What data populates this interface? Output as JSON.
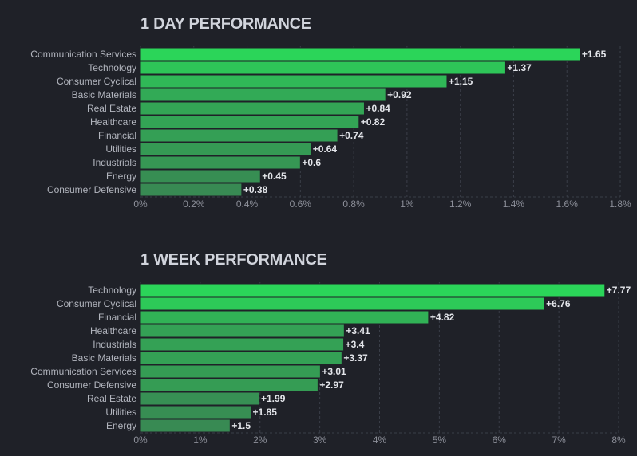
{
  "chart_data": [
    {
      "type": "bar",
      "orientation": "horizontal",
      "title": "1 DAY PERFORMANCE",
      "categories": [
        "Communication Services",
        "Technology",
        "Consumer Cyclical",
        "Basic Materials",
        "Real Estate",
        "Healthcare",
        "Financial",
        "Utilities",
        "Industrials",
        "Energy",
        "Consumer Defensive"
      ],
      "values": [
        1.65,
        1.37,
        1.15,
        0.92,
        0.84,
        0.82,
        0.74,
        0.64,
        0.6,
        0.45,
        0.38
      ],
      "value_labels": [
        "+1.65",
        "+1.37",
        "+1.15",
        "+0.92",
        "+0.84",
        "+0.82",
        "+0.74",
        "+0.64",
        "+0.6",
        "+0.45",
        "+0.38"
      ],
      "xticks": [
        0,
        0.2,
        0.4,
        0.6,
        0.8,
        1,
        1.2,
        1.4,
        1.6,
        1.8
      ],
      "xtick_labels": [
        "0%",
        "0.2%",
        "0.4%",
        "0.6%",
        "0.8%",
        "1%",
        "1.2%",
        "1.4%",
        "1.6%",
        "1.8%"
      ],
      "xlim": [
        0,
        1.8
      ],
      "xlabel": "",
      "ylabel": "",
      "grid": true
    },
    {
      "type": "bar",
      "orientation": "horizontal",
      "title": "1 WEEK PERFORMANCE",
      "categories": [
        "Technology",
        "Consumer Cyclical",
        "Financial",
        "Healthcare",
        "Industrials",
        "Basic Materials",
        "Communication Services",
        "Consumer Defensive",
        "Real Estate",
        "Utilities",
        "Energy"
      ],
      "values": [
        7.77,
        6.76,
        4.82,
        3.41,
        3.4,
        3.37,
        3.01,
        2.97,
        1.99,
        1.85,
        1.5
      ],
      "value_labels": [
        "+7.77",
        "+6.76",
        "+4.82",
        "+3.41",
        "+3.4",
        "+3.37",
        "+3.01",
        "+2.97",
        "+1.99",
        "+1.85",
        "+1.5"
      ],
      "xticks": [
        0,
        1,
        2,
        3,
        4,
        5,
        6,
        7,
        8
      ],
      "xtick_labels": [
        "0%",
        "1%",
        "2%",
        "3%",
        "4%",
        "5%",
        "6%",
        "7%",
        "8%"
      ],
      "xlim": [
        0,
        8
      ],
      "xlabel": "",
      "ylabel": "",
      "grid": true
    }
  ],
  "colors": {
    "bar_bright": "#2bd559",
    "bar_dim": "#3a7d52",
    "background": "#1f2128"
  }
}
